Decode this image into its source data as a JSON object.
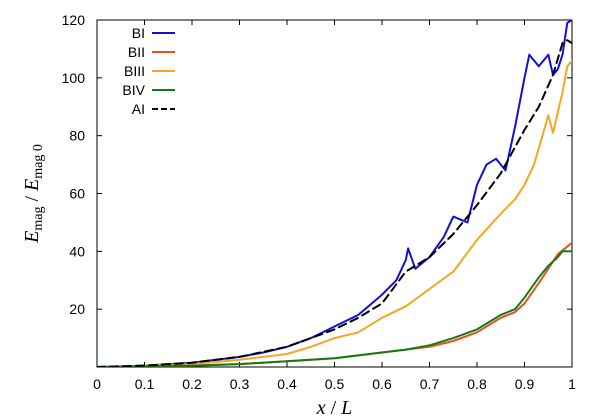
{
  "chart_data": {
    "type": "line",
    "xlabel": {
      "main": "x",
      "sep": " / ",
      "unit": "L"
    },
    "ylabel": {
      "main": "E",
      "sub1": "mag",
      "sep": " / ",
      "main2": "E",
      "sub2": "mag 0"
    },
    "xlim": [
      0,
      1
    ],
    "ylim": [
      0,
      120
    ],
    "x_ticks": [
      "0",
      "0.1",
      "0.2",
      "0.3",
      "0.4",
      "0.5",
      "0.6",
      "0.7",
      "0.8",
      "0.9",
      "1"
    ],
    "y_ticks": [
      "20",
      "40",
      "60",
      "80",
      "100",
      "120"
    ],
    "grid": false,
    "legend_position": "top-left",
    "series": [
      {
        "name": "BI",
        "color": "#1010d8",
        "dash": "solid",
        "points": [
          [
            0,
            0
          ],
          [
            0.1,
            0.5
          ],
          [
            0.2,
            1.5
          ],
          [
            0.3,
            3.5
          ],
          [
            0.35,
            5
          ],
          [
            0.4,
            7
          ],
          [
            0.45,
            10
          ],
          [
            0.5,
            14
          ],
          [
            0.55,
            18
          ],
          [
            0.6,
            25
          ],
          [
            0.63,
            30
          ],
          [
            0.65,
            37
          ],
          [
            0.655,
            41
          ],
          [
            0.67,
            34
          ],
          [
            0.7,
            38
          ],
          [
            0.73,
            45
          ],
          [
            0.75,
            52
          ],
          [
            0.78,
            50
          ],
          [
            0.8,
            63
          ],
          [
            0.82,
            70
          ],
          [
            0.84,
            72
          ],
          [
            0.86,
            68
          ],
          [
            0.88,
            83
          ],
          [
            0.9,
            100
          ],
          [
            0.91,
            108
          ],
          [
            0.93,
            104
          ],
          [
            0.95,
            108
          ],
          [
            0.96,
            101
          ],
          [
            0.97,
            103
          ],
          [
            0.98,
            108
          ],
          [
            0.99,
            119
          ],
          [
            1.0,
            120
          ]
        ]
      },
      {
        "name": "BII",
        "color": "#e8511d",
        "dash": "solid",
        "points": [
          [
            0,
            0
          ],
          [
            0.2,
            0.5
          ],
          [
            0.3,
            1
          ],
          [
            0.4,
            2
          ],
          [
            0.5,
            3
          ],
          [
            0.55,
            4
          ],
          [
            0.6,
            5
          ],
          [
            0.65,
            6
          ],
          [
            0.7,
            7
          ],
          [
            0.75,
            9
          ],
          [
            0.8,
            12
          ],
          [
            0.85,
            17
          ],
          [
            0.88,
            19
          ],
          [
            0.9,
            22
          ],
          [
            0.93,
            29
          ],
          [
            0.95,
            34
          ],
          [
            0.97,
            39
          ],
          [
            1.0,
            43
          ]
        ]
      },
      {
        "name": "BIII",
        "color": "#f5a623",
        "dash": "solid",
        "points": [
          [
            0,
            0
          ],
          [
            0.1,
            0.5
          ],
          [
            0.2,
            1
          ],
          [
            0.3,
            2.5
          ],
          [
            0.4,
            4.5
          ],
          [
            0.45,
            7
          ],
          [
            0.5,
            10
          ],
          [
            0.55,
            12
          ],
          [
            0.6,
            17
          ],
          [
            0.65,
            21
          ],
          [
            0.7,
            27
          ],
          [
            0.75,
            33
          ],
          [
            0.8,
            44
          ],
          [
            0.85,
            53
          ],
          [
            0.88,
            58
          ],
          [
            0.9,
            63
          ],
          [
            0.92,
            70
          ],
          [
            0.95,
            87
          ],
          [
            0.96,
            81
          ],
          [
            0.98,
            95
          ],
          [
            0.99,
            104
          ],
          [
            1.0,
            106
          ]
        ]
      },
      {
        "name": "BIV",
        "color": "#157a15",
        "dash": "solid",
        "points": [
          [
            0,
            0
          ],
          [
            0.2,
            0.5
          ],
          [
            0.3,
            1
          ],
          [
            0.4,
            2
          ],
          [
            0.5,
            3
          ],
          [
            0.55,
            4
          ],
          [
            0.6,
            5
          ],
          [
            0.65,
            6
          ],
          [
            0.7,
            7.5
          ],
          [
            0.75,
            10
          ],
          [
            0.8,
            13
          ],
          [
            0.85,
            18
          ],
          [
            0.88,
            20
          ],
          [
            0.9,
            24
          ],
          [
            0.93,
            31
          ],
          [
            0.95,
            35
          ],
          [
            0.97,
            38
          ],
          [
            0.98,
            40
          ],
          [
            1.0,
            40
          ]
        ]
      },
      {
        "name": "AI",
        "color": "#000000",
        "dash": "dashed",
        "points": [
          [
            0,
            0
          ],
          [
            0.1,
            0.5
          ],
          [
            0.2,
            1.5
          ],
          [
            0.3,
            3.5
          ],
          [
            0.4,
            7
          ],
          [
            0.45,
            10
          ],
          [
            0.5,
            13
          ],
          [
            0.55,
            17
          ],
          [
            0.6,
            22
          ],
          [
            0.65,
            33
          ],
          [
            0.7,
            38
          ],
          [
            0.75,
            46
          ],
          [
            0.8,
            56
          ],
          [
            0.85,
            67
          ],
          [
            0.88,
            76
          ],
          [
            0.9,
            82
          ],
          [
            0.93,
            90
          ],
          [
            0.96,
            101
          ],
          [
            0.98,
            112
          ],
          [
            0.99,
            113
          ],
          [
            1.0,
            112
          ]
        ]
      }
    ]
  }
}
